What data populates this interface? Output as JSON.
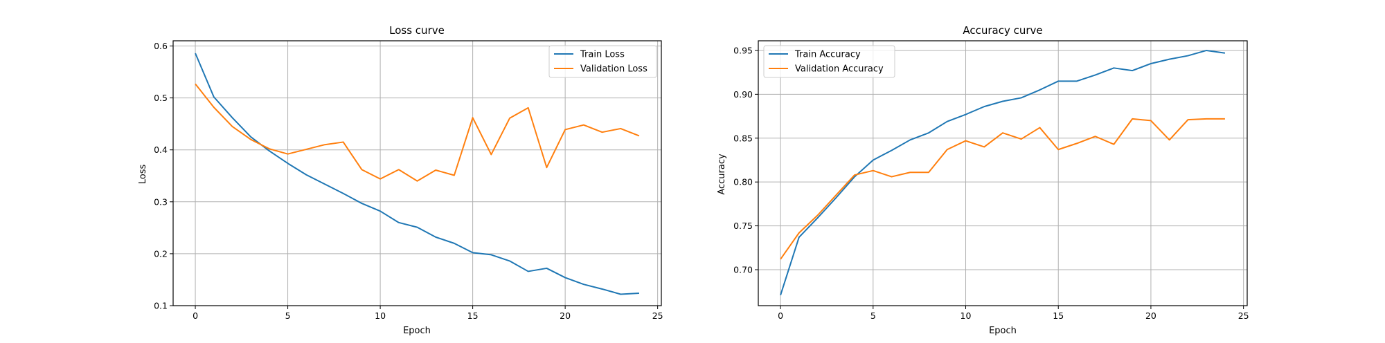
{
  "chart_data": [
    {
      "type": "line",
      "title": "Loss curve",
      "xlabel": "Epoch",
      "ylabel": "Loss",
      "xlim": [
        -1.2,
        25.2
      ],
      "ylim": [
        0.1,
        0.61
      ],
      "xticks": [
        0,
        5,
        10,
        15,
        20,
        25
      ],
      "yticks": [
        0.1,
        0.2,
        0.3,
        0.4,
        0.5,
        0.6
      ],
      "ytick_labels": [
        "0.1",
        "0.2",
        "0.3",
        "0.4",
        "0.5",
        "0.6"
      ],
      "grid": true,
      "legend_position": "upper right",
      "x": [
        0,
        1,
        2,
        3,
        4,
        5,
        6,
        7,
        8,
        9,
        10,
        11,
        12,
        13,
        14,
        15,
        16,
        17,
        18,
        19,
        20,
        21,
        22,
        23,
        24
      ],
      "series": [
        {
          "name": "Train Loss",
          "color": "#1f77b4",
          "values": [
            0.586,
            0.502,
            0.462,
            0.425,
            0.398,
            0.374,
            0.352,
            0.334,
            0.316,
            0.297,
            0.282,
            0.26,
            0.251,
            0.232,
            0.22,
            0.202,
            0.198,
            0.186,
            0.166,
            0.172,
            0.154,
            0.141,
            0.132,
            0.122,
            0.124
          ]
        },
        {
          "name": "Validation Loss",
          "color": "#ff7f0e",
          "values": [
            0.527,
            0.482,
            0.445,
            0.42,
            0.402,
            0.392,
            0.401,
            0.41,
            0.415,
            0.362,
            0.344,
            0.362,
            0.34,
            0.361,
            0.351,
            0.462,
            0.391,
            0.461,
            0.481,
            0.366,
            0.439,
            0.448,
            0.434,
            0.441,
            0.427
          ]
        }
      ]
    },
    {
      "type": "line",
      "title": "Accuracy curve",
      "xlabel": "Epoch",
      "ylabel": "Accuracy",
      "xlim": [
        -1.2,
        25.2
      ],
      "ylim": [
        0.659,
        0.961
      ],
      "xticks": [
        0,
        5,
        10,
        15,
        20,
        25
      ],
      "yticks": [
        0.7,
        0.75,
        0.8,
        0.85,
        0.9,
        0.95
      ],
      "ytick_labels": [
        "0.70",
        "0.75",
        "0.80",
        "0.85",
        "0.90",
        "0.95"
      ],
      "grid": true,
      "legend_position": "upper left",
      "x": [
        0,
        1,
        2,
        3,
        4,
        5,
        6,
        7,
        8,
        9,
        10,
        11,
        12,
        13,
        14,
        15,
        16,
        17,
        18,
        19,
        20,
        21,
        22,
        23,
        24
      ],
      "series": [
        {
          "name": "Train Accuracy",
          "color": "#1f77b4",
          "values": [
            0.671,
            0.737,
            0.759,
            0.782,
            0.806,
            0.825,
            0.836,
            0.848,
            0.856,
            0.869,
            0.877,
            0.886,
            0.892,
            0.896,
            0.905,
            0.915,
            0.915,
            0.922,
            0.93,
            0.927,
            0.935,
            0.94,
            0.944,
            0.95,
            0.947
          ]
        },
        {
          "name": "Validation Accuracy",
          "color": "#ff7f0e",
          "values": [
            0.712,
            0.742,
            0.762,
            0.785,
            0.808,
            0.813,
            0.806,
            0.811,
            0.811,
            0.837,
            0.847,
            0.84,
            0.856,
            0.849,
            0.862,
            0.837,
            0.844,
            0.852,
            0.843,
            0.872,
            0.87,
            0.848,
            0.871,
            0.872,
            0.872
          ]
        }
      ]
    }
  ]
}
